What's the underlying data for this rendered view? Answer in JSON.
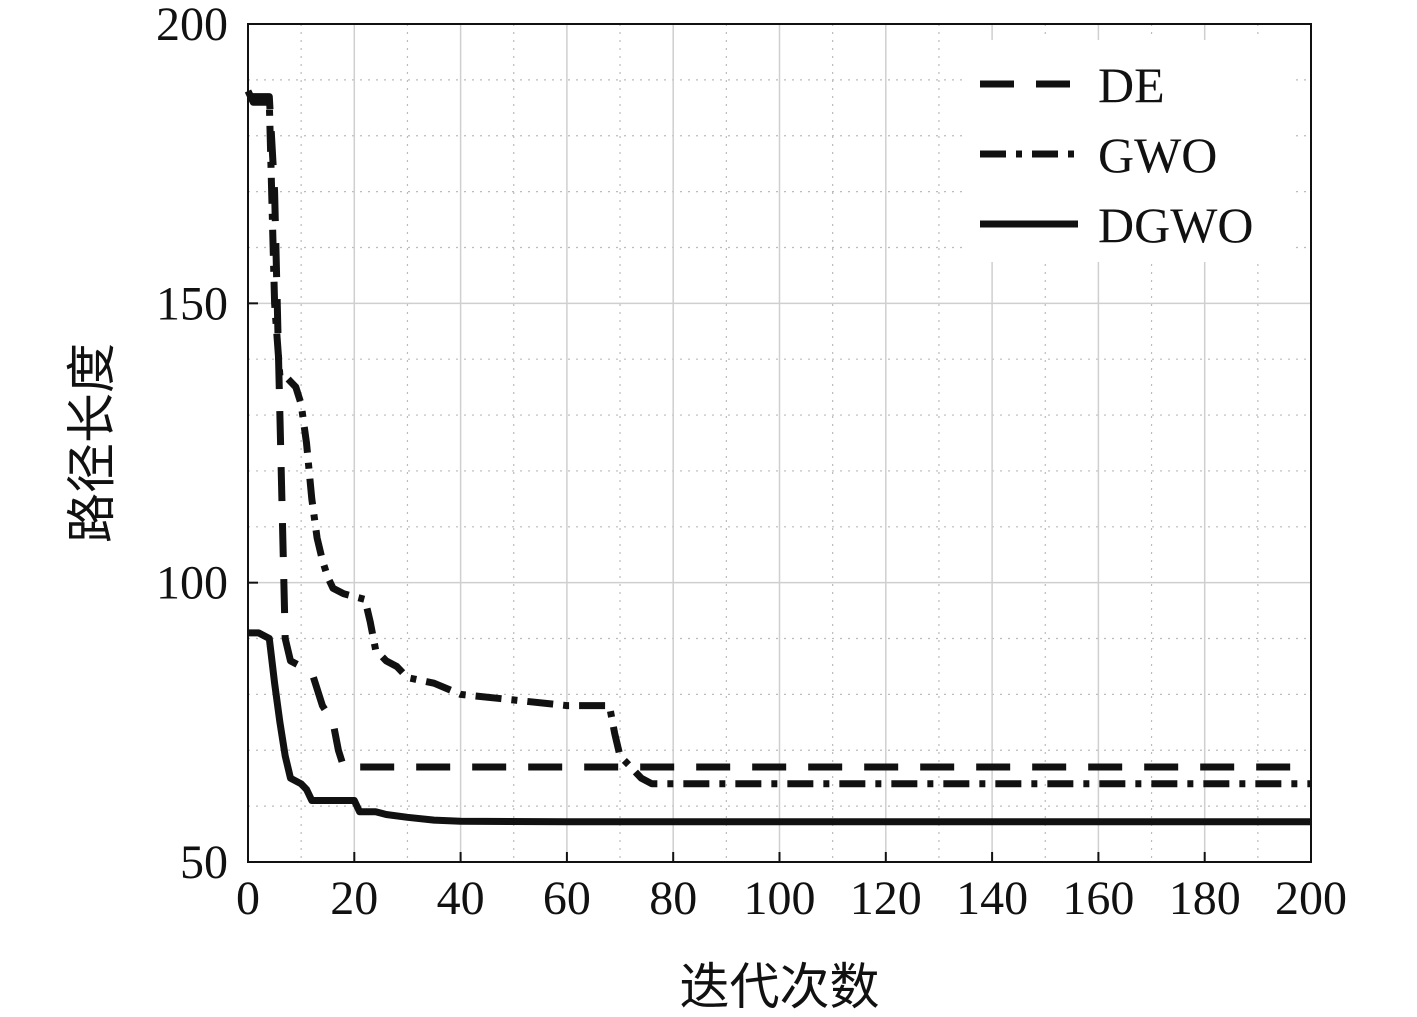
{
  "chart_data": {
    "type": "line",
    "xlabel": "迭代次数",
    "ylabel": "路径长度",
    "xlim": [
      0,
      200
    ],
    "ylim": [
      50,
      200
    ],
    "xticks": [
      "0",
      "20",
      "40",
      "60",
      "80",
      "100",
      "120",
      "140",
      "160",
      "180",
      "200"
    ],
    "yticks": [
      "50",
      "100",
      "150",
      "200"
    ],
    "grid": true,
    "legend_position": "top-right",
    "series": [
      {
        "name": "DE",
        "style": "dashed",
        "x": [
          0,
          4,
          5,
          6,
          7,
          8,
          12,
          14,
          16,
          17,
          18,
          20,
          200
        ],
        "y": [
          187,
          187,
          170,
          130,
          90,
          86,
          84,
          78,
          75,
          70,
          67,
          67,
          67
        ]
      },
      {
        "name": "GWO",
        "style": "dashdot",
        "x": [
          0,
          1,
          4,
          5,
          6,
          7,
          9,
          10,
          11,
          12,
          13,
          14,
          15,
          16,
          18,
          22,
          23,
          24,
          26,
          28,
          30,
          35,
          40,
          50,
          60,
          68,
          69,
          70,
          72,
          74,
          76,
          200
        ],
        "y": [
          188,
          186,
          186,
          150,
          137,
          137,
          135,
          132,
          125,
          115,
          108,
          104,
          101,
          99,
          98,
          97,
          93,
          88,
          86,
          85,
          83,
          82,
          80,
          79,
          78,
          78,
          73,
          69,
          67,
          65,
          64,
          64
        ]
      },
      {
        "name": "DGWO",
        "style": "solid",
        "x": [
          0,
          2,
          4,
          5,
          6,
          7,
          8,
          10,
          11,
          12,
          20,
          21,
          24,
          26,
          30,
          35,
          40,
          60,
          200
        ],
        "y": [
          91,
          91,
          90,
          82,
          75,
          69,
          65,
          64,
          63,
          61,
          61,
          59,
          59,
          58.5,
          58,
          57.5,
          57.3,
          57.2,
          57.2
        ]
      }
    ]
  }
}
